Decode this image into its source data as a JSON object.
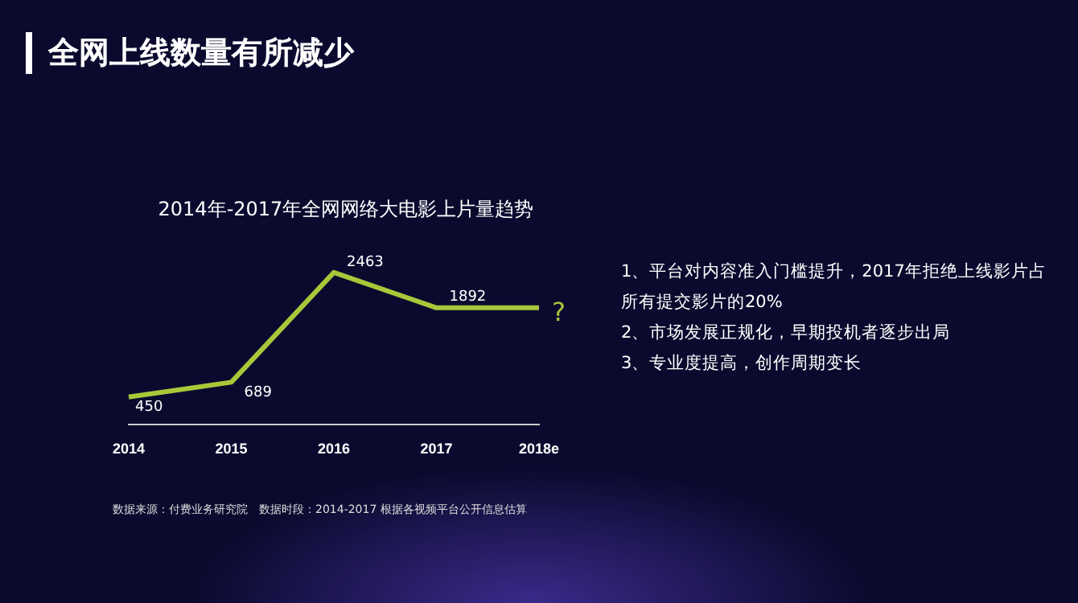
{
  "chart_data": {
    "type": "line",
    "title": "全网上线数量有所减少",
    "subtitle": "2014年-2017年全网网络大电影上片量趋势",
    "categories": [
      "2014",
      "2015",
      "2016",
      "2017",
      "2018e"
    ],
    "series": [
      {
        "color": "#a8c83a",
        "values": [
          450,
          689,
          2463,
          1892,
          1892
        ],
        "value_labels": [
          "450",
          "689",
          "2463",
          "1892",
          "?"
        ]
      }
    ],
    "marker": "none",
    "grid": false,
    "legend": false,
    "annotations": [
      "1、平台对内容准入门槛提升，2017年拒绝上线影片占所有提交影片的20%",
      "2、市场发展正规化，早期投机者逐步出局",
      "3、专业度提高，创作周期变长",
      "数据来源：付费业务研究院　数据时段：2014-2017 根据各视频平台公开信息估算"
    ]
  }
}
